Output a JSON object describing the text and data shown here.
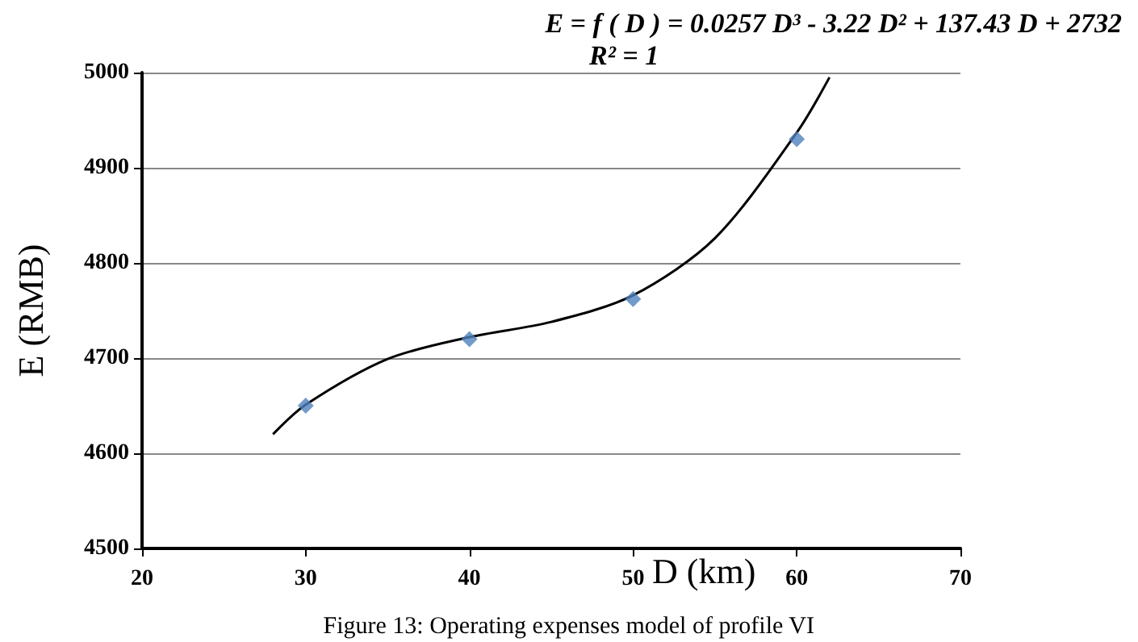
{
  "chart_data": {
    "type": "scatter",
    "xlabel": "D (km)",
    "ylabel": "E (RMB)",
    "xlim": [
      20,
      70
    ],
    "xticks": [
      20,
      30,
      40,
      50,
      60,
      70
    ],
    "ylim": [
      4500,
      5000
    ],
    "yticks": [
      4500,
      4600,
      4700,
      4800,
      4900,
      5000
    ],
    "grid": "y",
    "marker": "diamond",
    "series": [
      {
        "color": "#4f81bd",
        "x": [
          30,
          40,
          50,
          60
        ],
        "values": [
          4650,
          4720,
          4762,
          4930
        ]
      },
      {
        "type": "line",
        "color": "#000000",
        "marker": "none",
        "x": [
          28,
          30,
          35,
          40,
          45,
          50,
          55,
          60,
          62
        ],
        "values": [
          4620,
          4651,
          4699,
          4722,
          4738,
          4766,
          4826,
          4937,
          4995
        ]
      }
    ],
    "annotations": [
      "E = f ( D ) = 0.0257 D³ - 3.22 D² + 137.43 D + 2732",
      "R² = 1",
      "Figure 13: Operating expenses model of profile VI"
    ]
  }
}
